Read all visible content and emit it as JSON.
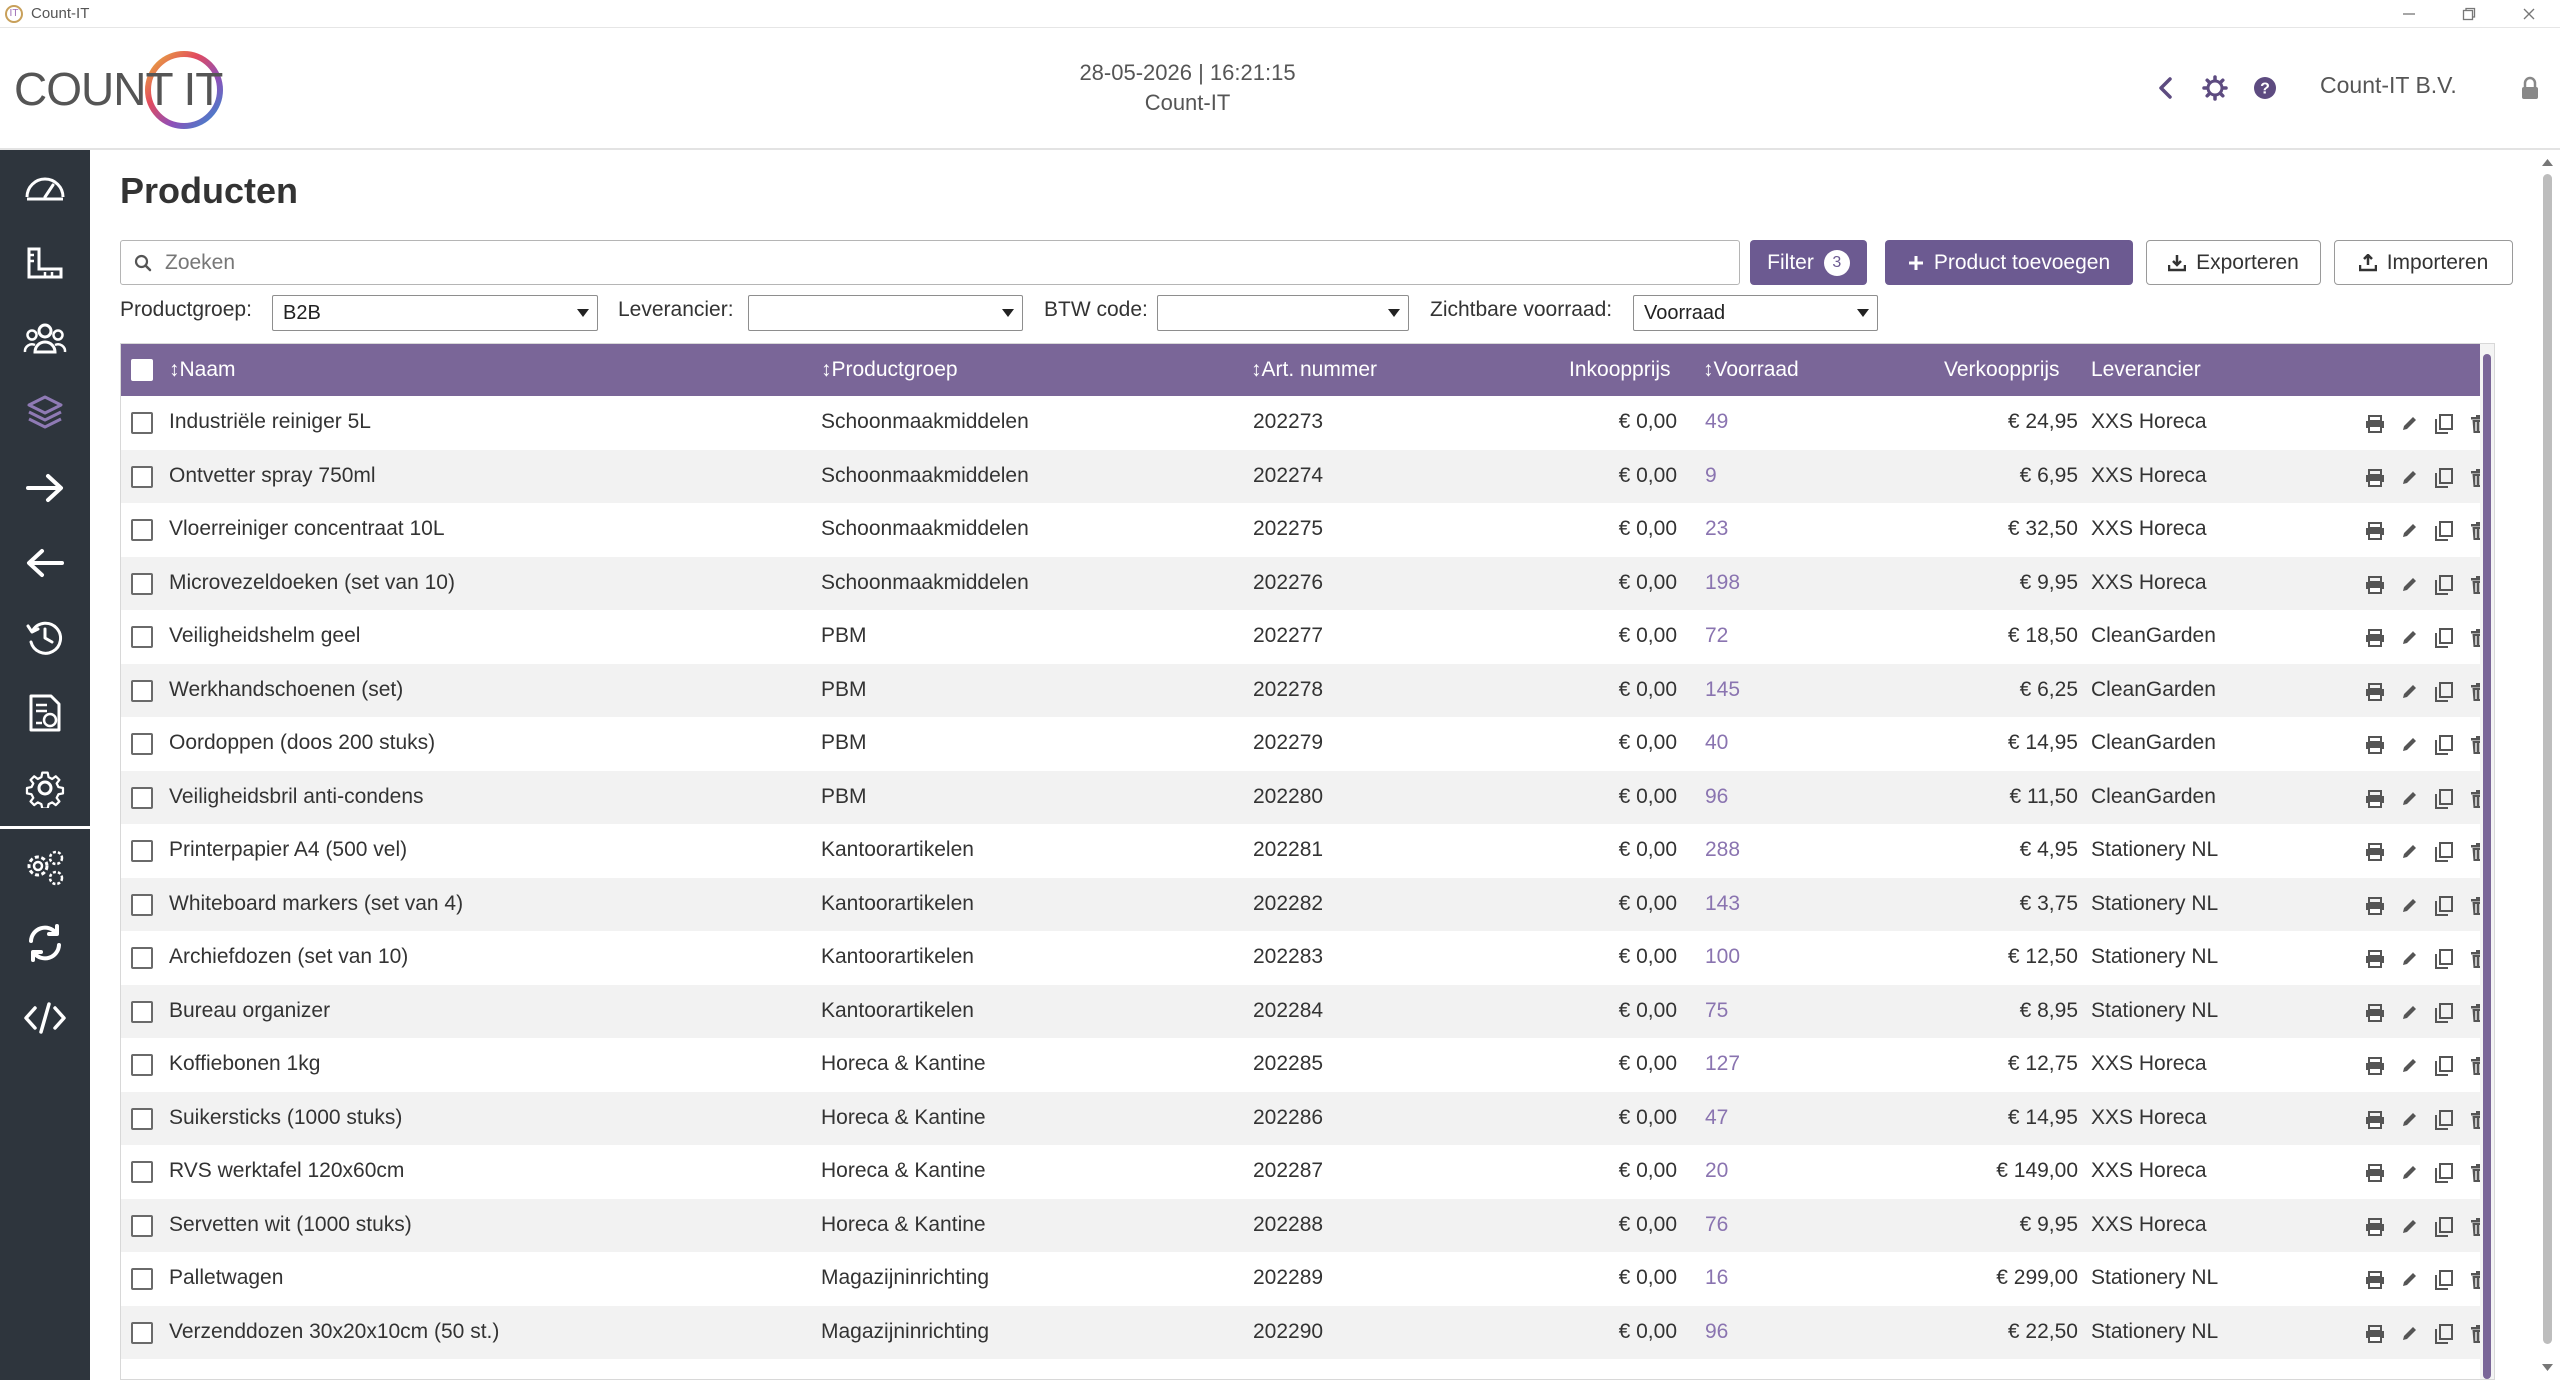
{
  "window": {
    "title": "Count-IT",
    "controls": [
      "minimize",
      "maximize",
      "close"
    ]
  },
  "header": {
    "logo_text": "COUNT IT",
    "datetime": "28-05-2026 | 16:21:15",
    "subtitle": "Count-IT",
    "company": "Count-IT B.V.",
    "icons": [
      "chevron-left-icon",
      "gear-icon",
      "help-icon",
      "lock-icon"
    ]
  },
  "sidebar": {
    "items": [
      {
        "icon": "dashboard-icon"
      },
      {
        "icon": "ruler-icon"
      },
      {
        "icon": "customers-icon"
      },
      {
        "icon": "products-icon",
        "active": true
      },
      {
        "icon": "arrow-right-icon"
      },
      {
        "icon": "arrow-left-icon"
      },
      {
        "icon": "history-icon"
      },
      {
        "icon": "report-icon"
      },
      {
        "icon": "settings-icon"
      },
      {
        "icon": "advanced-settings-icon"
      },
      {
        "icon": "sync-icon"
      },
      {
        "icon": "code-icon"
      }
    ]
  },
  "page": {
    "title": "Producten",
    "search_placeholder": "Zoeken",
    "buttons": {
      "filter": "Filter",
      "filter_count": "3",
      "add_product": "Product toevoegen",
      "export": "Exporteren",
      "import": "Importeren"
    },
    "filters": {
      "productgroep_label": "Productgroep:",
      "productgroep_value": "B2B",
      "leverancier_label": "Leverancier:",
      "leverancier_value": "",
      "btw_label": "BTW code:",
      "btw_value": "",
      "voorraad_label": "Zichtbare voorraad:",
      "voorraad_value": "Voorraad"
    }
  },
  "table": {
    "columns": {
      "naam": "Naam",
      "productgroep": "Productgroep",
      "artnummer": "Art. nummer",
      "inkoopprijs": "Inkoopprijs",
      "voorraad": "Voorraad",
      "verkoopprijs": "Verkoopprijs",
      "leverancier": "Leverancier"
    },
    "rows": [
      {
        "naam": "Industriële reiniger 5L",
        "groep": "Schoonmaakmiddelen",
        "art": "202273",
        "inkoop": "€ 0,00",
        "voorraad": "49",
        "verkoop": "€ 24,95",
        "lev": "XXS Horeca"
      },
      {
        "naam": "Ontvetter spray 750ml",
        "groep": "Schoonmaakmiddelen",
        "art": "202274",
        "inkoop": "€ 0,00",
        "voorraad": "9",
        "verkoop": "€ 6,95",
        "lev": "XXS Horeca"
      },
      {
        "naam": "Vloerreiniger concentraat 10L",
        "groep": "Schoonmaakmiddelen",
        "art": "202275",
        "inkoop": "€ 0,00",
        "voorraad": "23",
        "verkoop": "€ 32,50",
        "lev": "XXS Horeca"
      },
      {
        "naam": "Microvezeldoeken (set van 10)",
        "groep": "Schoonmaakmiddelen",
        "art": "202276",
        "inkoop": "€ 0,00",
        "voorraad": "198",
        "verkoop": "€ 9,95",
        "lev": "XXS Horeca"
      },
      {
        "naam": "Veiligheidshelm geel",
        "groep": "PBM",
        "art": "202277",
        "inkoop": "€ 0,00",
        "voorraad": "72",
        "verkoop": "€ 18,50",
        "lev": "CleanGarden"
      },
      {
        "naam": "Werkhandschoenen (set)",
        "groep": "PBM",
        "art": "202278",
        "inkoop": "€ 0,00",
        "voorraad": "145",
        "verkoop": "€ 6,25",
        "lev": "CleanGarden"
      },
      {
        "naam": "Oordoppen (doos 200 stuks)",
        "groep": "PBM",
        "art": "202279",
        "inkoop": "€ 0,00",
        "voorraad": "40",
        "verkoop": "€ 14,95",
        "lev": "CleanGarden"
      },
      {
        "naam": "Veiligheidsbril anti-condens",
        "groep": "PBM",
        "art": "202280",
        "inkoop": "€ 0,00",
        "voorraad": "96",
        "verkoop": "€ 11,50",
        "lev": "CleanGarden"
      },
      {
        "naam": "Printerpapier A4 (500 vel)",
        "groep": "Kantoorartikelen",
        "art": "202281",
        "inkoop": "€ 0,00",
        "voorraad": "288",
        "verkoop": "€ 4,95",
        "lev": "Stationery NL"
      },
      {
        "naam": "Whiteboard markers (set van 4)",
        "groep": "Kantoorartikelen",
        "art": "202282",
        "inkoop": "€ 0,00",
        "voorraad": "143",
        "verkoop": "€ 3,75",
        "lev": "Stationery NL"
      },
      {
        "naam": "Archiefdozen (set van 10)",
        "groep": "Kantoorartikelen",
        "art": "202283",
        "inkoop": "€ 0,00",
        "voorraad": "100",
        "verkoop": "€ 12,50",
        "lev": "Stationery NL"
      },
      {
        "naam": "Bureau organizer",
        "groep": "Kantoorartikelen",
        "art": "202284",
        "inkoop": "€ 0,00",
        "voorraad": "75",
        "verkoop": "€ 8,95",
        "lev": "Stationery NL"
      },
      {
        "naam": "Koffiebonen 1kg",
        "groep": "Horeca & Kantine",
        "art": "202285",
        "inkoop": "€ 0,00",
        "voorraad": "127",
        "verkoop": "€ 12,75",
        "lev": "XXS Horeca"
      },
      {
        "naam": "Suikersticks (1000 stuks)",
        "groep": "Horeca & Kantine",
        "art": "202286",
        "inkoop": "€ 0,00",
        "voorraad": "47",
        "verkoop": "€ 14,95",
        "lev": "XXS Horeca"
      },
      {
        "naam": "RVS werktafel 120x60cm",
        "groep": "Horeca & Kantine",
        "art": "202287",
        "inkoop": "€ 0,00",
        "voorraad": "20",
        "verkoop": "€ 149,00",
        "lev": "XXS Horeca"
      },
      {
        "naam": "Servetten wit (1000 stuks)",
        "groep": "Horeca & Kantine",
        "art": "202288",
        "inkoop": "€ 0,00",
        "voorraad": "76",
        "verkoop": "€ 9,95",
        "lev": "XXS Horeca"
      },
      {
        "naam": "Palletwagen",
        "groep": "Magazijninrichting",
        "art": "202289",
        "inkoop": "€ 0,00",
        "voorraad": "16",
        "verkoop": "€ 299,00",
        "lev": "Stationery NL"
      },
      {
        "naam": "Verzenddozen 30x20x10cm (50 st.)",
        "groep": "Magazijninrichting",
        "art": "202290",
        "inkoop": "€ 0,00",
        "voorraad": "96",
        "verkoop": "€ 22,50",
        "lev": "Stationery NL"
      }
    ],
    "row_actions": [
      "print-icon",
      "edit-icon",
      "copy-icon",
      "delete-icon"
    ]
  },
  "colors": {
    "accent": "#6c5a91",
    "table_header": "#7a6698",
    "sidebar": "#2e353d",
    "stock_text": "#8a74b0"
  }
}
